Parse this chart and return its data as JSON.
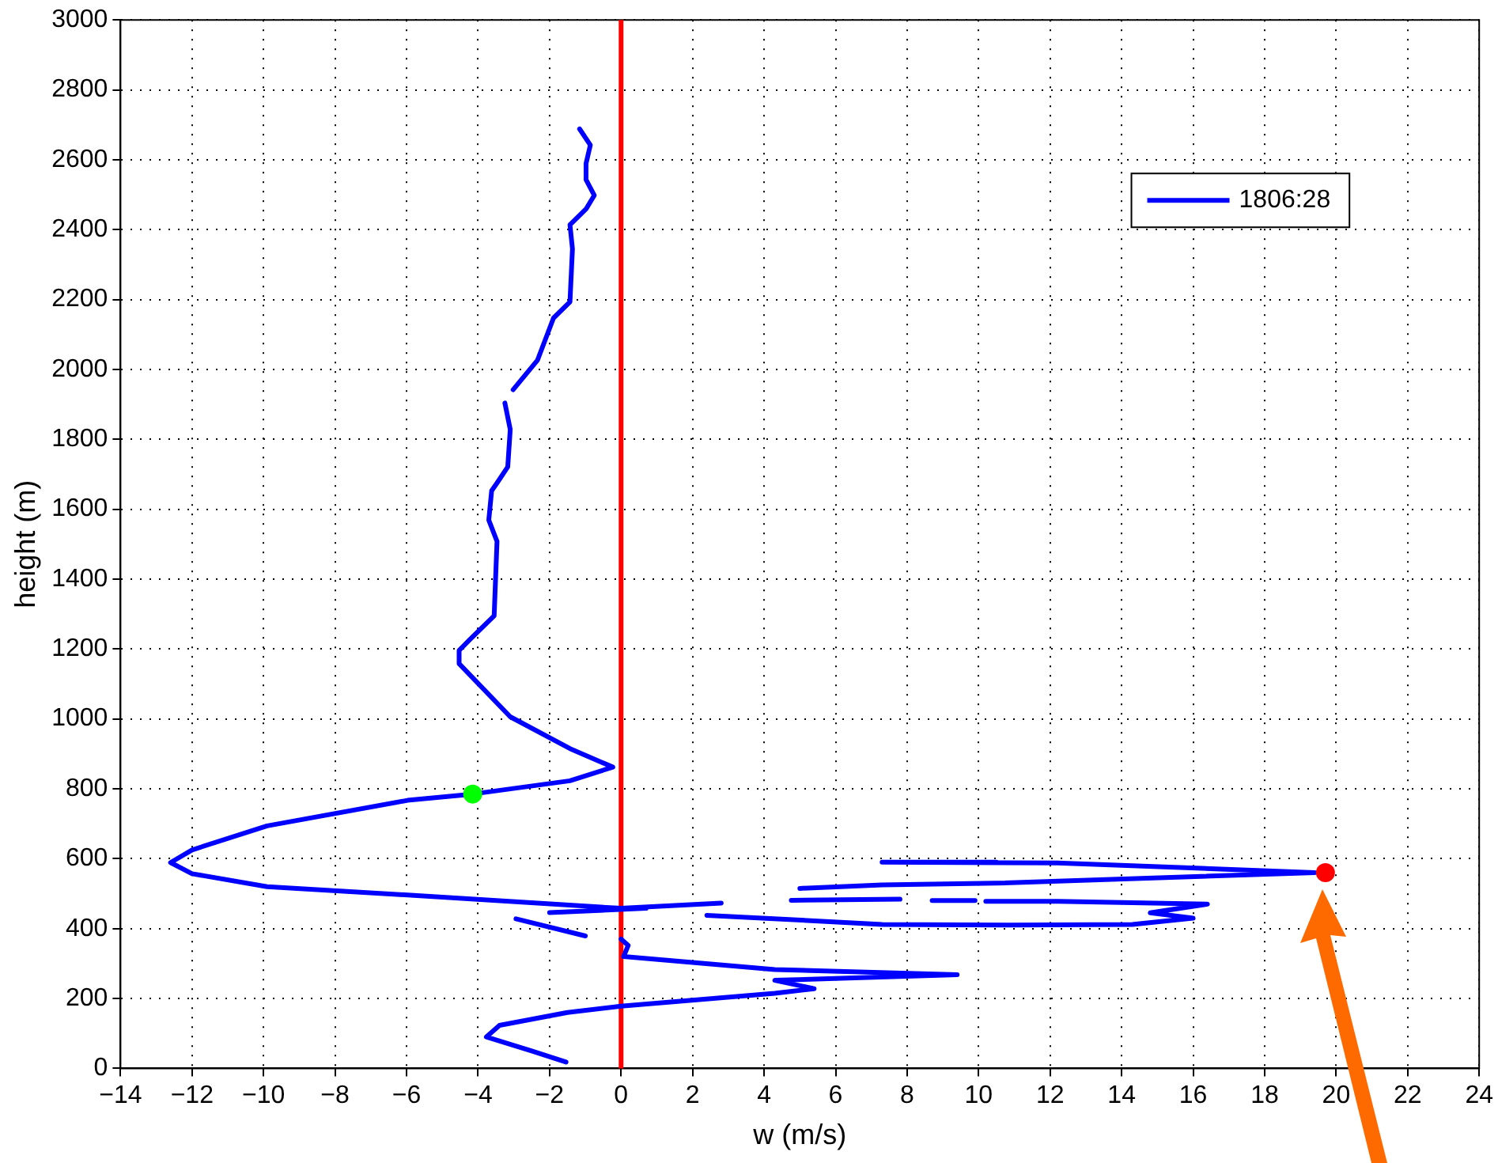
{
  "chart_data": {
    "type": "line",
    "xlabel": "w (m/s)",
    "ylabel": "height (m)",
    "xlim": [
      -14,
      24
    ],
    "xticks": [
      -14,
      -12,
      -10,
      -8,
      -6,
      -4,
      -2,
      0,
      2,
      4,
      6,
      8,
      10,
      12,
      14,
      16,
      18,
      20,
      22,
      24
    ],
    "ylim": [
      0,
      3000
    ],
    "yticks": [
      0,
      200,
      400,
      600,
      800,
      1000,
      1200,
      1400,
      1600,
      1800,
      2000,
      2200,
      2400,
      2600,
      2800,
      3000
    ],
    "grid": true,
    "legend": "top right",
    "line_style": "solid",
    "ref_lines": [
      {
        "axis": "x",
        "value": 0,
        "color": "#ff0000"
      }
    ],
    "series": [
      {
        "name": "1806:28",
        "color": "#0000ff",
        "marker": "none",
        "x": [
          -1.54,
          -2.5,
          -3.77,
          -3.4,
          -1.5,
          0,
          4.3,
          5.4,
          4.3,
          9.4,
          4.3,
          0.07,
          0.2,
          0,
          null,
          -2.94,
          -1.0,
          null,
          -2.0,
          0.7,
          null,
          2.4,
          7.3,
          10.95,
          14.3,
          16.0,
          14.8,
          16.4,
          12.2,
          10.2,
          null,
          8.7,
          9.9,
          null,
          4.76,
          7.8,
          null,
          5.0,
          7.3,
          10.5,
          19.4,
          12.2,
          7.3,
          10.5,
          null,
          2.8,
          0,
          -5.97,
          -9.9,
          -12.0,
          -12.6,
          -12.0,
          -9.9,
          -5.97,
          -4.15,
          -1.43,
          -0.23,
          -1.43,
          -3.1,
          -4.53,
          -4.53,
          -4.23,
          -3.55,
          -3.47,
          -3.7,
          -3.62,
          -3.47,
          -3.17,
          -3.1,
          -3.25,
          null,
          -3.02,
          -2.34,
          -1.89,
          -1.43,
          -1.36,
          -1.43,
          -0.98,
          -0.75,
          -0.98,
          -0.98,
          -0.86,
          -1.16
        ],
        "values": [
          18,
          50,
          90,
          123,
          160,
          178,
          215,
          228,
          252,
          268,
          283,
          320,
          352,
          370,
          null,
          428,
          379,
          null,
          446,
          458,
          null,
          438,
          412,
          410,
          412,
          430,
          445,
          470,
          478,
          478,
          null,
          480,
          480,
          null,
          481,
          484,
          null,
          515,
          525,
          530,
          560,
          588,
          590,
          590,
          null,
          473,
          458,
          496,
          520,
          557,
          589,
          625,
          694,
          767,
          785,
          823,
          862,
          915,
          1006,
          1158,
          1196,
          1227,
          1295,
          1508,
          1569,
          1653,
          1675,
          1721,
          1828,
          1904,
          null,
          1942,
          2026,
          2147,
          2193,
          2345,
          2414,
          2459,
          2498,
          2543,
          2589,
          2642,
          2688
        ]
      },
      {
        "color": "#00ff00",
        "type": "scatter",
        "marker": "circle",
        "x": [
          -4.15
        ],
        "values": [
          785
        ]
      },
      {
        "color": "#ff0000",
        "type": "scatter",
        "marker": "circle",
        "x": [
          19.7
        ],
        "values": [
          560
        ]
      }
    ]
  }
}
